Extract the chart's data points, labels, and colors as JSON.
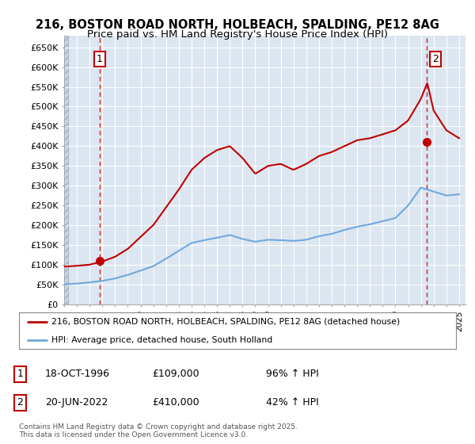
{
  "title_line1": "216, BOSTON ROAD NORTH, HOLBEACH, SPALDING, PE12 8AG",
  "title_line2": "Price paid vs. HM Land Registry's House Price Index (HPI)",
  "ylim": [
    0,
    680000
  ],
  "yticks": [
    0,
    50000,
    100000,
    150000,
    200000,
    250000,
    300000,
    350000,
    400000,
    450000,
    500000,
    550000,
    600000,
    650000
  ],
  "ytick_labels": [
    "£0",
    "£50K",
    "£100K",
    "£150K",
    "£200K",
    "£250K",
    "£300K",
    "£350K",
    "£400K",
    "£450K",
    "£500K",
    "£550K",
    "£600K",
    "£650K"
  ],
  "xlim_start": 1994.0,
  "xlim_end": 2025.5,
  "background_color": "#ffffff",
  "plot_bg_color": "#dce6f1",
  "grid_color": "#ffffff",
  "hpi_line_color": "#6fa8dc",
  "price_line_color": "#c00000",
  "sale1_x": 1996.8,
  "sale1_y": 109000,
  "sale1_label": "1",
  "sale2_x": 2022.47,
  "sale2_y": 410000,
  "sale2_label": "2",
  "annotation1_date": "18-OCT-1996",
  "annotation1_price": "£109,000",
  "annotation1_hpi": "96% ↑ HPI",
  "annotation2_date": "20-JUN-2022",
  "annotation2_price": "£410,000",
  "annotation2_hpi": "42% ↑ HPI",
  "legend_line1": "216, BOSTON ROAD NORTH, HOLBEACH, SPALDING, PE12 8AG (detached house)",
  "legend_line2": "HPI: Average price, detached house, South Holland",
  "footer": "Contains HM Land Registry data © Crown copyright and database right 2025.\nThis data is licensed under the Open Government Licence v3.0.",
  "hpi_years": [
    1994,
    1995,
    1996,
    1997,
    1998,
    1999,
    2000,
    2001,
    2002,
    2003,
    2004,
    2005,
    2006,
    2007,
    2008,
    2009,
    2010,
    2011,
    2012,
    2013,
    2014,
    2015,
    2016,
    2017,
    2018,
    2019,
    2020,
    2021,
    2022,
    2023,
    2024,
    2025
  ],
  "hpi_values": [
    50000,
    52000,
    55000,
    59000,
    65000,
    74000,
    85000,
    96000,
    115000,
    135000,
    155000,
    162000,
    168000,
    175000,
    165000,
    158000,
    163000,
    162000,
    160000,
    163000,
    172000,
    178000,
    188000,
    196000,
    202000,
    210000,
    218000,
    250000,
    295000,
    285000,
    275000,
    278000
  ],
  "price_years": [
    1994,
    1995,
    1996,
    1997,
    1998,
    1999,
    2000,
    2001,
    2002,
    2003,
    2004,
    2005,
    2006,
    2007,
    2008,
    2009,
    2010,
    2011,
    2012,
    2013,
    2014,
    2015,
    2016,
    2017,
    2018,
    2019,
    2020,
    2021,
    2022,
    2022.5,
    2023,
    2024,
    2025
  ],
  "price_values": [
    95000,
    97000,
    100000,
    108000,
    120000,
    140000,
    170000,
    200000,
    245000,
    290000,
    340000,
    370000,
    390000,
    400000,
    370000,
    330000,
    350000,
    355000,
    340000,
    355000,
    375000,
    385000,
    400000,
    415000,
    420000,
    430000,
    440000,
    465000,
    520000,
    560000,
    490000,
    440000,
    420000
  ]
}
